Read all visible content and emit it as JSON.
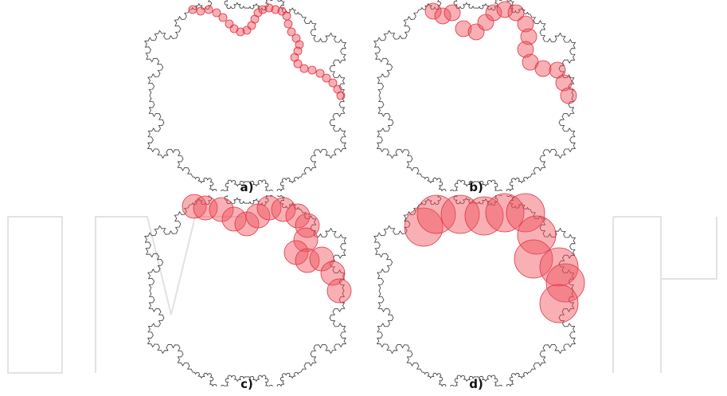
{
  "figure": {
    "panels": [
      {
        "id": "a",
        "label": "a)"
      },
      {
        "id": "b",
        "label": "b)"
      },
      {
        "id": "c",
        "label": "c)"
      },
      {
        "id": "d",
        "label": "d)"
      }
    ]
  },
  "colors": {
    "outline": "#333333",
    "circle_fill": "#f0505a",
    "circle_stroke": "#e03040",
    "watermark": "#dcdcdc"
  }
}
